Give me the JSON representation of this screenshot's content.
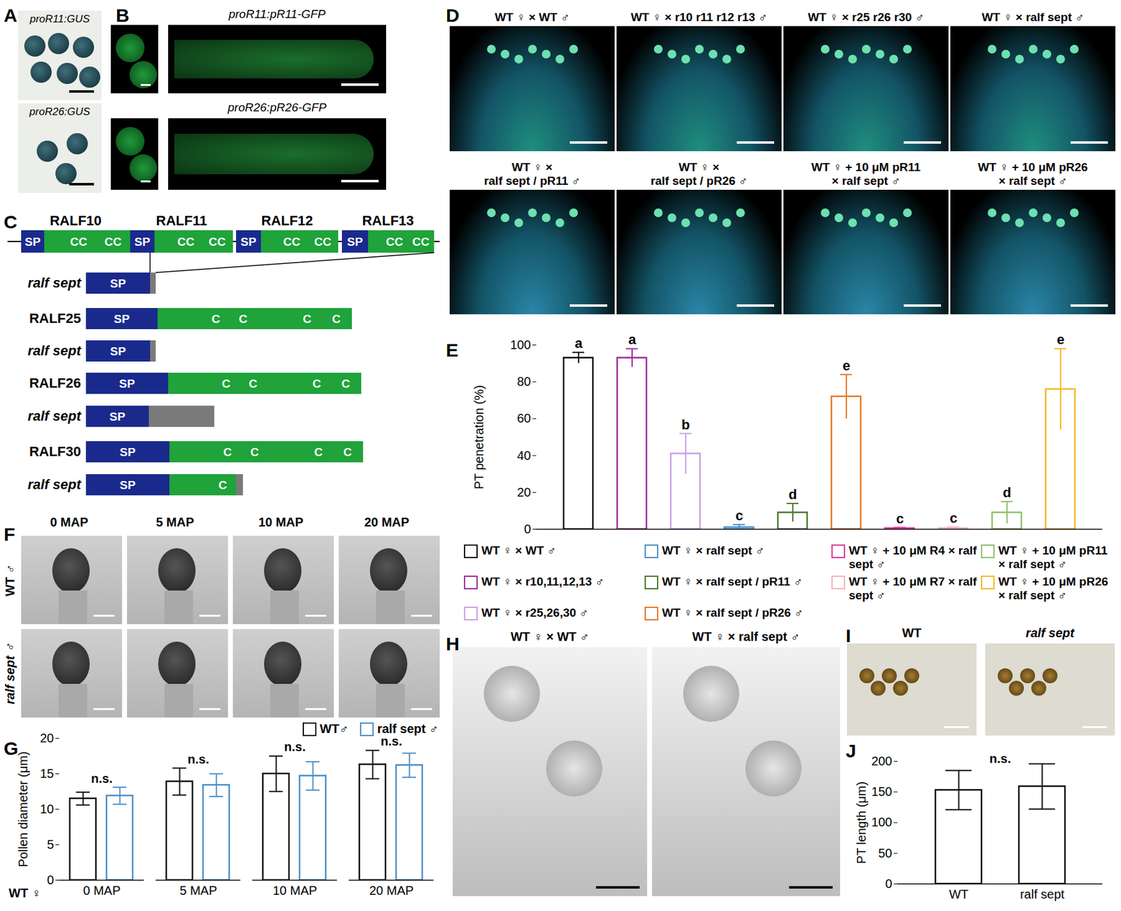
{
  "figure": {
    "panel_letters": [
      "A",
      "B",
      "C",
      "D",
      "E",
      "F",
      "G",
      "H",
      "I",
      "J"
    ],
    "A": {
      "labels": [
        "proR11:GUS",
        "proR26:GUS"
      ]
    },
    "B": {
      "labels": [
        "proR11:pR11-GFP",
        "proR26:pR26-GFP"
      ]
    },
    "C": {
      "top_genes": [
        "RALF10",
        "RALF11",
        "RALF12",
        "RALF13"
      ],
      "sp": "SP",
      "top_cys": [
        "CC",
        "CC"
      ],
      "rows": [
        {
          "label": "ralf sept",
          "cys": []
        },
        {
          "label": "RALF25",
          "cys": [
            "C",
            "C",
            "C",
            "C"
          ]
        },
        {
          "label": "ralf sept",
          "cys": []
        },
        {
          "label": "RALF26",
          "cys": [
            "C",
            "C",
            "C",
            "C"
          ]
        },
        {
          "label": "ralf sept",
          "cys": []
        },
        {
          "label": "RALF30",
          "cys": [
            "C",
            "C",
            "C",
            "C"
          ]
        },
        {
          "label": "ralf sept",
          "cys": [
            "C"
          ]
        }
      ]
    },
    "D": {
      "titles": [
        [
          "WT ♀ × WT ♂"
        ],
        [
          "WT ♀ × r10 r11 r12 r13 ♂"
        ],
        [
          "WT ♀ × r25 r26 r30 ♂"
        ],
        [
          "WT ♀ × ralf sept ♂"
        ],
        [
          "WT ♀ ×",
          "ralf sept / pR11 ♂"
        ],
        [
          "WT ♀ ×",
          "ralf sept / pR26 ♂"
        ],
        [
          "WT ♀ + 10 μM pR11",
          "× ralf sept ♂"
        ],
        [
          "WT ♀ + 10 μM pR26",
          "× ralf sept ♂"
        ]
      ]
    },
    "F": {
      "columns": [
        "0 MAP",
        "5 MAP",
        "10 MAP",
        "20 MAP"
      ],
      "rows": [
        "WT ♂",
        "ralf sept ♂"
      ]
    },
    "H": {
      "titles": [
        "WT ♀ × WT ♂",
        "WT ♀ × ralf sept ♂"
      ]
    },
    "I": {
      "titles": [
        "WT",
        "ralf sept"
      ]
    }
  },
  "chart_data": [
    {
      "type": "bar",
      "y_label": "PT penetration (%)",
      "categories": [
        "WT ♀ × WT ♂",
        "WT ♀ × r10,11,12,13 ♂",
        "WT ♀ × r25,26,30 ♂",
        "WT ♀ × ralf sept ♂",
        "WT ♀ × ralf sept / pR11 ♂",
        "WT ♀ × ralf sept / pR26 ♂",
        "WT ♀ + 10 μM R4 × ralf sept ♂",
        "WT ♀ + 10 μM R7 × ralf sept ♂",
        "WT ♀ + 10 μM pR11 × ralf sept ♂",
        "WT ♀ + 10 μM pR26 × ralf sept ♂"
      ],
      "values": [
        93,
        93,
        41,
        1,
        9,
        72,
        0.5,
        0.5,
        9,
        76
      ],
      "errors": [
        3,
        5,
        11,
        1.5,
        5,
        12,
        0.5,
        0.7,
        6,
        22
      ],
      "letters": [
        "a",
        "a",
        "b",
        "c",
        "d",
        "e",
        "c",
        "c",
        "d",
        "e"
      ],
      "colors": [
        "#111111",
        "#9b2d9b",
        "#c9a0e6",
        "#4a90c8",
        "#4a7a2a",
        "#e87722",
        "#e0359a",
        "#f2b3bf",
        "#8fc06a",
        "#f5b820"
      ],
      "ylim": [
        0,
        100
      ],
      "yticks": [
        0,
        20,
        40,
        60,
        80,
        100
      ],
      "grid": false,
      "legend": "bottom",
      "tick_labels": "y"
    },
    {
      "type": "bar",
      "y_label": "Pollen diameter (μm)",
      "x_label": "WT ♀",
      "categories": [
        "0 MAP",
        "5 MAP",
        "10 MAP",
        "20 MAP"
      ],
      "series": [
        {
          "name": "WT♂",
          "color": "#111111",
          "values": [
            11.5,
            13.9,
            15,
            16.3
          ],
          "errors": [
            0.9,
            1.9,
            2.5,
            2
          ]
        },
        {
          "name": "ralf sept ♂",
          "color": "#4a90c8",
          "values": [
            11.9,
            13.4,
            14.7,
            16.2
          ],
          "errors": [
            1.2,
            1.6,
            2,
            1.7
          ]
        }
      ],
      "annotations": [
        {
          "category": "0 MAP",
          "text": "n.s."
        },
        {
          "category": "5 MAP",
          "text": "n.s."
        },
        {
          "category": "10 MAP",
          "text": "n.s."
        },
        {
          "category": "20 MAP",
          "text": "n.s."
        }
      ],
      "ylim": [
        0,
        20
      ],
      "yticks": [
        0,
        5,
        10,
        15,
        20
      ],
      "grid": false,
      "legend": "top-right"
    },
    {
      "type": "bar",
      "y_label": "PT length (μm)",
      "categories": [
        "WT",
        "ralf sept"
      ],
      "values": [
        153,
        159
      ],
      "errors": [
        32,
        37
      ],
      "color": "#111111",
      "annotations": [
        "n.s."
      ],
      "ylim": [
        0,
        200
      ],
      "yticks": [
        0,
        50,
        100,
        150,
        200
      ],
      "grid": false
    }
  ]
}
